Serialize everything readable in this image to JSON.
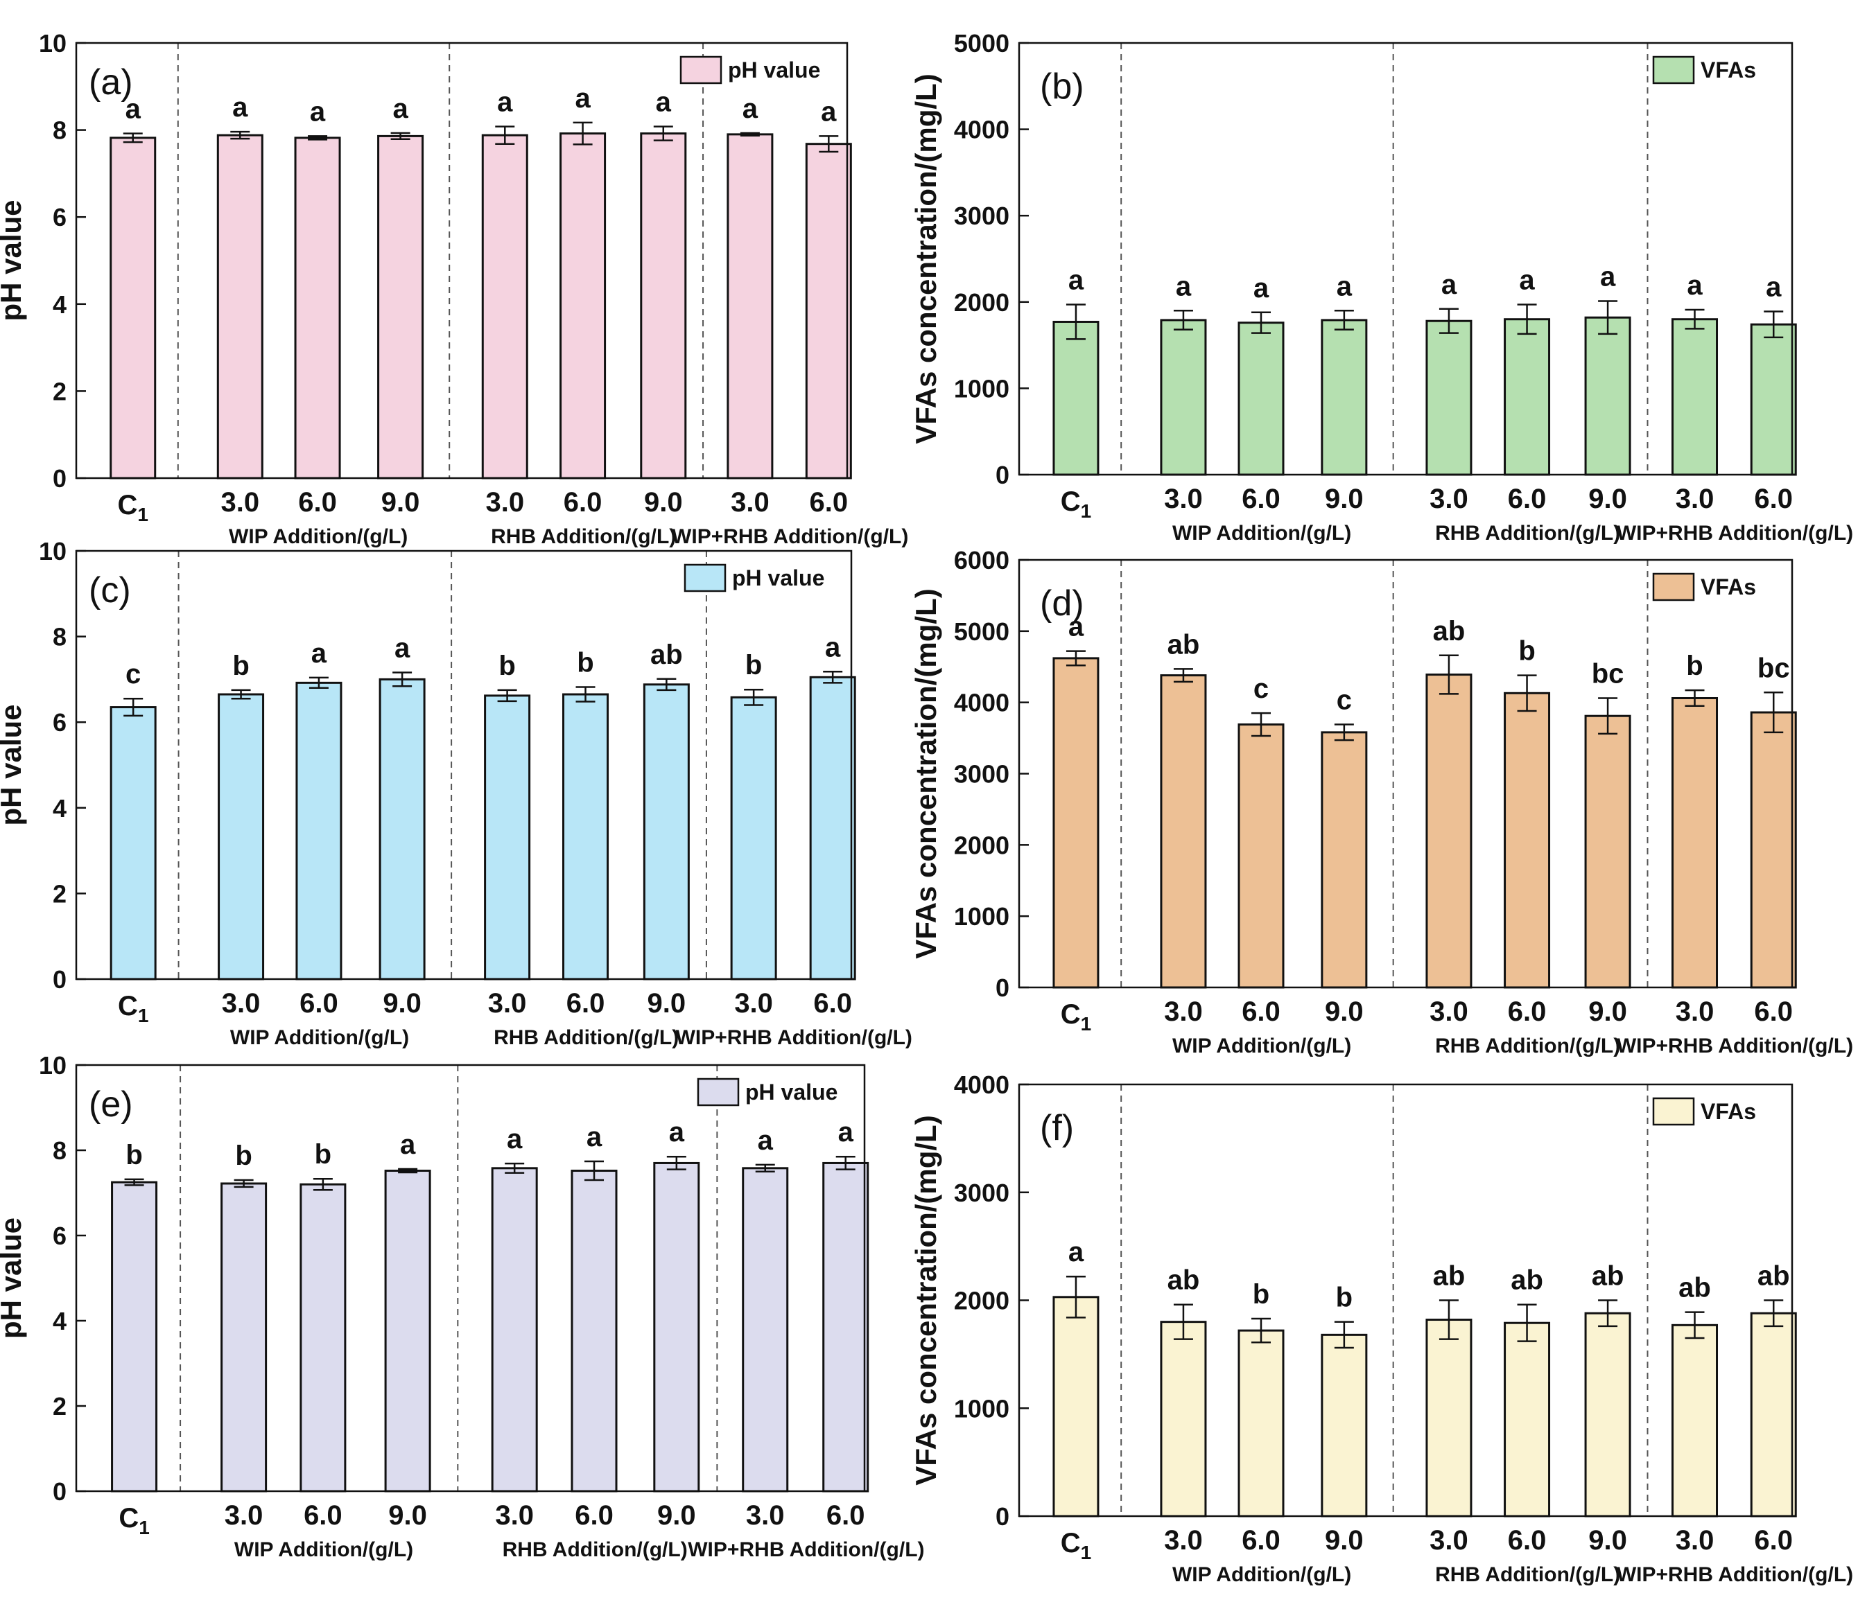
{
  "chart_data": [
    {
      "type": "bar",
      "panel_label": "(a)",
      "legend": "pH value",
      "ylabel": "pH value",
      "ylim": [
        0,
        10
      ],
      "yticks": [
        0,
        2,
        4,
        6,
        8,
        10
      ],
      "color": "#F5D3E0",
      "categories": [
        "C1",
        "3.0",
        "6.0",
        "9.0",
        "3.0",
        "6.0",
        "9.0",
        "3.0",
        "6.0"
      ],
      "groups": [
        "WIP Addition/(g/L)",
        "RHB Addition/(g/L)",
        "WIP+RHB Addition/(g/L)"
      ],
      "values": [
        7.82,
        7.88,
        7.82,
        7.86,
        7.88,
        7.92,
        7.92,
        7.9,
        7.68
      ],
      "errors": [
        0.1,
        0.08,
        0.04,
        0.07,
        0.2,
        0.25,
        0.16,
        0.03,
        0.18
      ],
      "letters": [
        "a",
        "a",
        "a",
        "a",
        "a",
        "a",
        "a",
        "a",
        "a"
      ]
    },
    {
      "type": "bar",
      "panel_label": "(b)",
      "legend": "VFAs",
      "ylabel": "VFAs concentration/(mg/L)",
      "ylim": [
        0,
        5000
      ],
      "yticks": [
        0,
        1000,
        2000,
        3000,
        4000,
        5000
      ],
      "color": "#B5E0B0",
      "categories": [
        "C1",
        "3.0",
        "6.0",
        "9.0",
        "3.0",
        "6.0",
        "9.0",
        "3.0",
        "6.0"
      ],
      "groups": [
        "WIP Addition/(g/L)",
        "RHB Addition/(g/L)",
        "WIP+RHB Addition/(g/L)"
      ],
      "values": [
        1770,
        1790,
        1760,
        1790,
        1780,
        1800,
        1820,
        1800,
        1740
      ],
      "errors": [
        200,
        110,
        120,
        110,
        140,
        170,
        190,
        110,
        150
      ],
      "letters": [
        "a",
        "a",
        "a",
        "a",
        "a",
        "a",
        "a",
        "a",
        "a"
      ]
    },
    {
      "type": "bar",
      "panel_label": "(c)",
      "legend": "pH value",
      "ylabel": "pH value",
      "ylim": [
        0,
        10
      ],
      "yticks": [
        0,
        2,
        4,
        6,
        8,
        10
      ],
      "color": "#B8E6F7",
      "categories": [
        "C1",
        "3.0",
        "6.0",
        "9.0",
        "3.0",
        "6.0",
        "9.0",
        "3.0",
        "6.0"
      ],
      "groups": [
        "WIP Addition/(g/L)",
        "RHB Addition/(g/L)",
        "WIP+RHB Addition/(g/L)"
      ],
      "values": [
        6.35,
        6.65,
        6.92,
        7.0,
        6.62,
        6.65,
        6.88,
        6.58,
        7.05
      ],
      "errors": [
        0.2,
        0.1,
        0.12,
        0.16,
        0.13,
        0.17,
        0.13,
        0.18,
        0.13
      ],
      "letters": [
        "c",
        "b",
        "a",
        "a",
        "b",
        "b",
        "ab",
        "b",
        "a"
      ]
    },
    {
      "type": "bar",
      "panel_label": "(d)",
      "legend": "VFAs",
      "ylabel": "VFAs concentration/(mg/L)",
      "ylim": [
        0,
        6000
      ],
      "yticks": [
        0,
        1000,
        2000,
        3000,
        4000,
        5000,
        6000
      ],
      "color": "#EDC095",
      "categories": [
        "C1",
        "3.0",
        "6.0",
        "9.0",
        "3.0",
        "6.0",
        "9.0",
        "3.0",
        "6.0"
      ],
      "groups": [
        "WIP Addition/(g/L)",
        "RHB Addition/(g/L)",
        "WIP+RHB Addition/(g/L)"
      ],
      "values": [
        4620,
        4380,
        3690,
        3580,
        4390,
        4130,
        3810,
        4060,
        3860
      ],
      "errors": [
        100,
        90,
        160,
        110,
        270,
        250,
        250,
        110,
        280
      ],
      "letters": [
        "a",
        "ab",
        "c",
        "c",
        "ab",
        "b",
        "bc",
        "b",
        "bc"
      ]
    },
    {
      "type": "bar",
      "panel_label": "(e)",
      "legend": "pH value",
      "ylabel": "pH value",
      "ylim": [
        0,
        10
      ],
      "yticks": [
        0,
        2,
        4,
        6,
        8,
        10
      ],
      "color": "#DCDCEE",
      "categories": [
        "C1",
        "3.0",
        "6.0",
        "9.0",
        "3.0",
        "6.0",
        "9.0",
        "3.0",
        "6.0"
      ],
      "groups": [
        "WIP Addition/(g/L)",
        "RHB Addition/(g/L)",
        "WIP+RHB Addition/(g/L)"
      ],
      "values": [
        7.25,
        7.22,
        7.2,
        7.52,
        7.58,
        7.52,
        7.7,
        7.58,
        7.7
      ],
      "errors": [
        0.07,
        0.08,
        0.13,
        0.04,
        0.11,
        0.22,
        0.15,
        0.08,
        0.15
      ],
      "letters": [
        "b",
        "b",
        "b",
        "a",
        "a",
        "a",
        "a",
        "a",
        "a"
      ]
    },
    {
      "type": "bar",
      "panel_label": "(f)",
      "legend": "VFAs",
      "ylabel": "VFAs concentration/(mg/L)",
      "ylim": [
        0,
        4000
      ],
      "yticks": [
        0,
        1000,
        2000,
        3000,
        4000
      ],
      "color": "#FAF3D2",
      "categories": [
        "C1",
        "3.0",
        "6.0",
        "9.0",
        "3.0",
        "6.0",
        "9.0",
        "3.0",
        "6.0"
      ],
      "groups": [
        "WIP Addition/(g/L)",
        "RHB Addition/(g/L)",
        "WIP+RHB Addition/(g/L)"
      ],
      "values": [
        2030,
        1800,
        1720,
        1680,
        1820,
        1790,
        1880,
        1770,
        1880
      ],
      "errors": [
        190,
        160,
        110,
        120,
        180,
        170,
        120,
        120,
        120
      ],
      "letters": [
        "a",
        "ab",
        "b",
        "b",
        "ab",
        "ab",
        "ab",
        "ab",
        "ab"
      ]
    }
  ]
}
